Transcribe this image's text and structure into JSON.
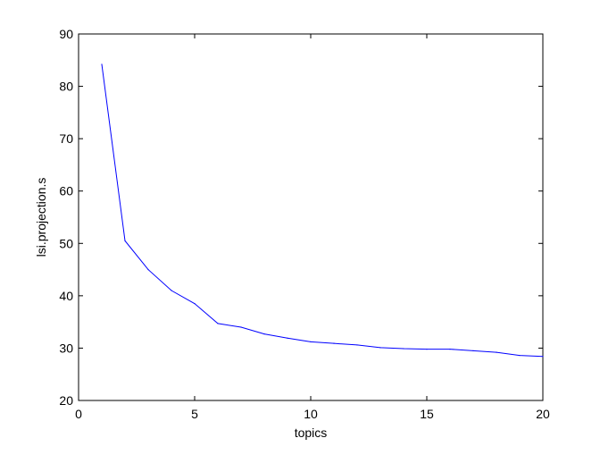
{
  "chart_data": {
    "type": "line",
    "title": "",
    "xlabel": "topics",
    "ylabel": "lsi.projection.s",
    "xlim": [
      0,
      20
    ],
    "ylim": [
      20,
      90
    ],
    "xticks": [
      0,
      5,
      10,
      15,
      20
    ],
    "yticks": [
      20,
      30,
      40,
      50,
      60,
      70,
      80,
      90
    ],
    "grid": false,
    "legend": "none",
    "series": [
      {
        "color": "#0000ff",
        "x": [
          1,
          2,
          3,
          4,
          5,
          6,
          7,
          8,
          9,
          10,
          11,
          12,
          13,
          14,
          15,
          16,
          17,
          18,
          19,
          20
        ],
        "y": [
          84.2,
          50.5,
          45.0,
          41.0,
          38.5,
          34.7,
          34.0,
          32.7,
          31.9,
          31.2,
          30.9,
          30.6,
          30.1,
          29.9,
          29.8,
          29.8,
          29.5,
          29.2,
          28.6,
          28.4
        ]
      }
    ]
  }
}
